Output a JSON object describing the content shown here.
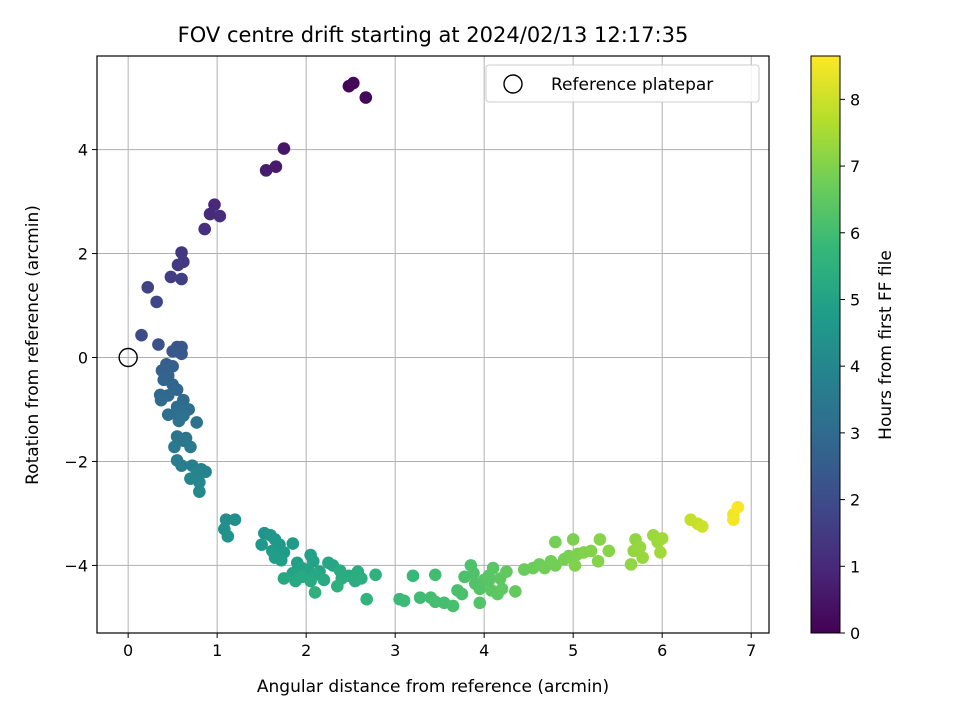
{
  "chart_data": {
    "type": "scatter",
    "title": "FOV centre drift starting at 2024/02/13 12:17:35",
    "xlabel": "Angular distance from reference (arcmin)",
    "ylabel": "Rotation from reference (arcmin)",
    "xlim": [
      -0.35,
      7.2
    ],
    "ylim": [
      -5.3,
      5.8
    ],
    "xticks": [
      0,
      1,
      2,
      3,
      4,
      5,
      6,
      7
    ],
    "yticks": [
      -4,
      -2,
      0,
      2,
      4
    ],
    "grid": true,
    "legend": {
      "placement": "top-right",
      "entries": [
        "Reference platepar"
      ]
    },
    "reference": {
      "x": 0,
      "y": 0
    },
    "colorbar": {
      "label": "Hours from first FF file",
      "range": [
        0,
        8.65
      ],
      "ticks": [
        0,
        1,
        2,
        3,
        4,
        5,
        6,
        7,
        8
      ],
      "colormap": "viridis"
    },
    "points": [
      {
        "x": 2.48,
        "y": 5.22,
        "c": 0.1
      },
      {
        "x": 2.53,
        "y": 5.28,
        "c": 0.15
      },
      {
        "x": 2.67,
        "y": 5.0,
        "c": 0.2
      },
      {
        "x": 1.75,
        "y": 4.02,
        "c": 0.55
      },
      {
        "x": 1.66,
        "y": 3.67,
        "c": 0.65
      },
      {
        "x": 1.55,
        "y": 3.6,
        "c": 0.7
      },
      {
        "x": 0.97,
        "y": 2.94,
        "c": 1.0
      },
      {
        "x": 0.92,
        "y": 2.76,
        "c": 1.05
      },
      {
        "x": 1.03,
        "y": 2.72,
        "c": 1.1
      },
      {
        "x": 0.86,
        "y": 2.47,
        "c": 1.15
      },
      {
        "x": 0.6,
        "y": 2.02,
        "c": 1.4
      },
      {
        "x": 0.62,
        "y": 1.84,
        "c": 1.45
      },
      {
        "x": 0.56,
        "y": 1.78,
        "c": 1.5
      },
      {
        "x": 0.48,
        "y": 1.55,
        "c": 1.55
      },
      {
        "x": 0.6,
        "y": 1.51,
        "c": 1.6
      },
      {
        "x": 0.22,
        "y": 1.35,
        "c": 1.7
      },
      {
        "x": 0.32,
        "y": 1.07,
        "c": 1.8
      },
      {
        "x": 0.15,
        "y": 0.43,
        "c": 2.0
      },
      {
        "x": 0.34,
        "y": 0.25,
        "c": 2.15
      },
      {
        "x": 0.55,
        "y": 0.2,
        "c": 2.3
      },
      {
        "x": 0.6,
        "y": 0.2,
        "c": 2.35
      },
      {
        "x": 0.5,
        "y": 0.12,
        "c": 2.4
      },
      {
        "x": 0.6,
        "y": 0.07,
        "c": 2.45
      },
      {
        "x": 0.43,
        "y": -0.13,
        "c": 2.55
      },
      {
        "x": 0.5,
        "y": -0.17,
        "c": 2.6
      },
      {
        "x": 0.38,
        "y": -0.25,
        "c": 2.65
      },
      {
        "x": 0.45,
        "y": -0.35,
        "c": 2.7
      },
      {
        "x": 0.4,
        "y": -0.43,
        "c": 2.75
      },
      {
        "x": 0.5,
        "y": -0.52,
        "c": 2.8
      },
      {
        "x": 0.55,
        "y": -0.62,
        "c": 2.85
      },
      {
        "x": 0.36,
        "y": -0.72,
        "c": 2.9
      },
      {
        "x": 0.45,
        "y": -0.73,
        "c": 2.92
      },
      {
        "x": 0.37,
        "y": -0.82,
        "c": 2.95
      },
      {
        "x": 0.62,
        "y": -0.82,
        "c": 3.0
      },
      {
        "x": 0.55,
        "y": -0.95,
        "c": 3.05
      },
      {
        "x": 0.68,
        "y": -1.0,
        "c": 3.1
      },
      {
        "x": 0.45,
        "y": -1.1,
        "c": 3.12
      },
      {
        "x": 0.55,
        "y": -1.1,
        "c": 3.15
      },
      {
        "x": 0.62,
        "y": -1.12,
        "c": 3.2
      },
      {
        "x": 0.57,
        "y": -1.22,
        "c": 3.25
      },
      {
        "x": 0.77,
        "y": -1.25,
        "c": 3.3
      },
      {
        "x": 0.55,
        "y": -1.52,
        "c": 3.35
      },
      {
        "x": 0.65,
        "y": -1.55,
        "c": 3.4
      },
      {
        "x": 0.62,
        "y": -1.6,
        "c": 3.45
      },
      {
        "x": 0.52,
        "y": -1.72,
        "c": 3.5
      },
      {
        "x": 0.7,
        "y": -1.72,
        "c": 3.55
      },
      {
        "x": 0.55,
        "y": -1.98,
        "c": 3.6
      },
      {
        "x": 0.6,
        "y": -2.08,
        "c": 3.7
      },
      {
        "x": 0.72,
        "y": -2.08,
        "c": 3.75
      },
      {
        "x": 0.82,
        "y": -2.15,
        "c": 3.8
      },
      {
        "x": 0.87,
        "y": -2.2,
        "c": 3.85
      },
      {
        "x": 0.77,
        "y": -2.25,
        "c": 3.9
      },
      {
        "x": 0.7,
        "y": -2.33,
        "c": 3.95
      },
      {
        "x": 0.8,
        "y": -2.4,
        "c": 4.0
      },
      {
        "x": 0.8,
        "y": -2.58,
        "c": 4.05
      },
      {
        "x": 1.1,
        "y": -3.12,
        "c": 4.25
      },
      {
        "x": 1.2,
        "y": -3.12,
        "c": 4.3
      },
      {
        "x": 1.08,
        "y": -3.3,
        "c": 4.35
      },
      {
        "x": 1.12,
        "y": -3.44,
        "c": 4.4
      },
      {
        "x": 1.53,
        "y": -3.38,
        "c": 4.5
      },
      {
        "x": 1.6,
        "y": -3.42,
        "c": 4.55
      },
      {
        "x": 1.65,
        "y": -3.5,
        "c": 4.6
      },
      {
        "x": 1.5,
        "y": -3.6,
        "c": 4.62
      },
      {
        "x": 1.7,
        "y": -3.6,
        "c": 4.65
      },
      {
        "x": 1.85,
        "y": -3.58,
        "c": 4.7
      },
      {
        "x": 1.62,
        "y": -3.72,
        "c": 4.72
      },
      {
        "x": 1.75,
        "y": -3.75,
        "c": 4.75
      },
      {
        "x": 1.65,
        "y": -3.85,
        "c": 4.8
      },
      {
        "x": 1.72,
        "y": -3.9,
        "c": 4.85
      },
      {
        "x": 1.9,
        "y": -3.95,
        "c": 4.9
      },
      {
        "x": 2.05,
        "y": -3.8,
        "c": 4.92
      },
      {
        "x": 2.08,
        "y": -3.92,
        "c": 4.95
      },
      {
        "x": 1.95,
        "y": -4.05,
        "c": 5.0
      },
      {
        "x": 2.02,
        "y": -4.08,
        "c": 5.02
      },
      {
        "x": 1.85,
        "y": -4.15,
        "c": 5.05
      },
      {
        "x": 2.15,
        "y": -4.12,
        "c": 5.08
      },
      {
        "x": 2.25,
        "y": -3.95,
        "c": 5.1
      },
      {
        "x": 2.3,
        "y": -4.0,
        "c": 5.12
      },
      {
        "x": 2.1,
        "y": -4.18,
        "c": 5.15
      },
      {
        "x": 1.95,
        "y": -4.22,
        "c": 5.18
      },
      {
        "x": 1.75,
        "y": -4.25,
        "c": 5.2
      },
      {
        "x": 1.88,
        "y": -4.3,
        "c": 5.22
      },
      {
        "x": 2.05,
        "y": -4.3,
        "c": 5.25
      },
      {
        "x": 2.2,
        "y": -4.28,
        "c": 5.28
      },
      {
        "x": 2.38,
        "y": -4.1,
        "c": 5.3
      },
      {
        "x": 2.4,
        "y": -4.25,
        "c": 5.32
      },
      {
        "x": 2.48,
        "y": -4.2,
        "c": 5.35
      },
      {
        "x": 2.58,
        "y": -4.12,
        "c": 5.38
      },
      {
        "x": 2.55,
        "y": -4.3,
        "c": 5.4
      },
      {
        "x": 2.62,
        "y": -4.25,
        "c": 5.42
      },
      {
        "x": 2.35,
        "y": -4.4,
        "c": 5.45
      },
      {
        "x": 2.1,
        "y": -4.52,
        "c": 5.5
      },
      {
        "x": 2.78,
        "y": -4.18,
        "c": 5.55
      },
      {
        "x": 2.68,
        "y": -4.65,
        "c": 5.6
      },
      {
        "x": 3.2,
        "y": -4.2,
        "c": 5.8
      },
      {
        "x": 3.05,
        "y": -4.65,
        "c": 5.85
      },
      {
        "x": 3.1,
        "y": -4.68,
        "c": 5.9
      },
      {
        "x": 3.28,
        "y": -4.62,
        "c": 5.95
      },
      {
        "x": 3.45,
        "y": -4.18,
        "c": 6.0
      },
      {
        "x": 3.4,
        "y": -4.62,
        "c": 6.02
      },
      {
        "x": 3.45,
        "y": -4.7,
        "c": 6.05
      },
      {
        "x": 3.55,
        "y": -4.72,
        "c": 6.08
      },
      {
        "x": 3.65,
        "y": -4.78,
        "c": 6.1
      },
      {
        "x": 3.7,
        "y": -4.48,
        "c": 6.12
      },
      {
        "x": 3.75,
        "y": -4.55,
        "c": 6.15
      },
      {
        "x": 3.78,
        "y": -4.22,
        "c": 6.18
      },
      {
        "x": 3.85,
        "y": -4.0,
        "c": 6.2
      },
      {
        "x": 3.88,
        "y": -4.15,
        "c": 6.22
      },
      {
        "x": 3.9,
        "y": -4.35,
        "c": 6.25
      },
      {
        "x": 3.95,
        "y": -4.72,
        "c": 6.28
      },
      {
        "x": 3.95,
        "y": -4.45,
        "c": 6.3
      },
      {
        "x": 4.0,
        "y": -4.28,
        "c": 6.32
      },
      {
        "x": 4.05,
        "y": -4.3,
        "c": 6.35
      },
      {
        "x": 4.05,
        "y": -4.2,
        "c": 6.38
      },
      {
        "x": 4.1,
        "y": -4.05,
        "c": 6.4
      },
      {
        "x": 4.08,
        "y": -4.48,
        "c": 6.42
      },
      {
        "x": 4.15,
        "y": -4.55,
        "c": 6.45
      },
      {
        "x": 4.18,
        "y": -4.25,
        "c": 6.48
      },
      {
        "x": 4.2,
        "y": -4.45,
        "c": 6.5
      },
      {
        "x": 4.25,
        "y": -4.12,
        "c": 6.52
      },
      {
        "x": 4.35,
        "y": -4.5,
        "c": 6.55
      },
      {
        "x": 4.45,
        "y": -4.08,
        "c": 6.65
      },
      {
        "x": 4.55,
        "y": -4.05,
        "c": 6.7
      },
      {
        "x": 4.62,
        "y": -3.98,
        "c": 6.72
      },
      {
        "x": 4.68,
        "y": -4.05,
        "c": 6.75
      },
      {
        "x": 4.75,
        "y": -3.92,
        "c": 6.78
      },
      {
        "x": 4.8,
        "y": -4.0,
        "c": 6.8
      },
      {
        "x": 4.8,
        "y": -3.55,
        "c": 6.82
      },
      {
        "x": 4.9,
        "y": -3.88,
        "c": 6.85
      },
      {
        "x": 4.95,
        "y": -3.82,
        "c": 6.88
      },
      {
        "x": 5.0,
        "y": -3.85,
        "c": 6.9
      },
      {
        "x": 5.0,
        "y": -3.5,
        "c": 6.92
      },
      {
        "x": 5.05,
        "y": -3.78,
        "c": 6.95
      },
      {
        "x": 5.02,
        "y": -4.0,
        "c": 6.98
      },
      {
        "x": 5.12,
        "y": -3.75,
        "c": 7.0
      },
      {
        "x": 5.2,
        "y": -3.72,
        "c": 7.02
      },
      {
        "x": 5.28,
        "y": -3.92,
        "c": 7.05
      },
      {
        "x": 5.3,
        "y": -3.5,
        "c": 7.08
      },
      {
        "x": 5.4,
        "y": -3.72,
        "c": 7.1
      },
      {
        "x": 5.65,
        "y": -3.98,
        "c": 7.2
      },
      {
        "x": 5.7,
        "y": -3.5,
        "c": 7.22
      },
      {
        "x": 5.68,
        "y": -3.72,
        "c": 7.25
      },
      {
        "x": 5.75,
        "y": -3.65,
        "c": 7.28
      },
      {
        "x": 5.78,
        "y": -3.85,
        "c": 7.3
      },
      {
        "x": 5.9,
        "y": -3.42,
        "c": 7.35
      },
      {
        "x": 5.95,
        "y": -3.55,
        "c": 7.38
      },
      {
        "x": 6.0,
        "y": -3.48,
        "c": 7.4
      },
      {
        "x": 5.98,
        "y": -3.75,
        "c": 7.42
      },
      {
        "x": 6.32,
        "y": -3.12,
        "c": 7.9
      },
      {
        "x": 6.4,
        "y": -3.2,
        "c": 7.95
      },
      {
        "x": 6.45,
        "y": -3.25,
        "c": 8.0
      },
      {
        "x": 6.8,
        "y": -3.02,
        "c": 8.45
      },
      {
        "x": 6.8,
        "y": -3.12,
        "c": 8.5
      },
      {
        "x": 6.85,
        "y": -2.88,
        "c": 8.6
      }
    ]
  }
}
